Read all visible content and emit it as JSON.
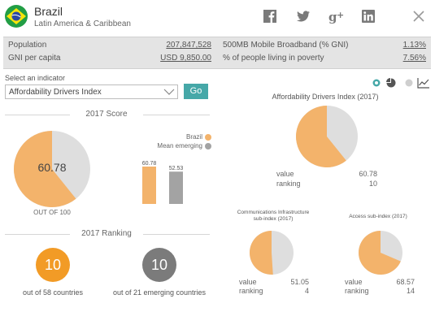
{
  "header": {
    "country": "Brazil",
    "region": "Latin America & Caribbean",
    "icons": [
      "brazil-flag-icon",
      "facebook-icon",
      "twitter-icon",
      "google-plus-icon",
      "linkedin-icon",
      "close-icon"
    ]
  },
  "stats": {
    "population_label": "Population",
    "population_value": "207,847,528",
    "gni_label": "GNI per capita",
    "gni_value": "USD 9,850.00",
    "broadband_label": "500MB Mobile Broadband (% GNI)",
    "broadband_value": "1.13%",
    "poverty_label": "% of people living in poverty",
    "poverty_value": "7.56%"
  },
  "selector": {
    "label": "Select an indicator",
    "value": "Affordability Drivers Index",
    "go_label": "Go"
  },
  "score": {
    "title": "2017 Score",
    "value": "60.78",
    "out_of": "OUT OF 100",
    "legend_brazil": "Brazil",
    "legend_mean": "Mean emerging",
    "bar_brazil_label": "60.78",
    "bar_mean_label": "52.53"
  },
  "ranking": {
    "title": "2017 Ranking",
    "rank_all": "10",
    "rank_all_text": "out of 58 countries",
    "rank_emerging": "10",
    "rank_emerging_text": "out of 21 emerging countries"
  },
  "right": {
    "view_icons": [
      "pie-view-icon",
      "line-view-icon"
    ],
    "main_title": "Affordability Drivers Index (2017)",
    "main_value_label": "value",
    "main_value": "60.78",
    "main_ranking_label": "ranking",
    "main_ranking": "10",
    "comm_title_1": "Communications Infrastructure",
    "comm_title_2": "sub-index (2017)",
    "comm_value_label": "value",
    "comm_value": "51.05",
    "comm_ranking_label": "ranking",
    "comm_ranking": "4",
    "access_title": "Access sub-index (2017)",
    "access_value_label": "value",
    "access_value": "68.57",
    "access_ranking_label": "ranking",
    "access_ranking": "14"
  },
  "colors": {
    "orange": "#f3b36b",
    "grey": "#dedede",
    "dark_grey": "#a3a3a3",
    "rank_orange": "#f29b26",
    "rank_grey": "#7b7b7b",
    "teal": "#46a8a8"
  },
  "chart_data": [
    {
      "type": "pie",
      "name": "2017 Score",
      "values": [
        60.78,
        39.22
      ],
      "total": 100
    },
    {
      "type": "bar",
      "categories": [
        "Brazil",
        "Mean emerging"
      ],
      "values": [
        60.78,
        52.53
      ]
    },
    {
      "type": "pie",
      "title": "Affordability Drivers Index (2017)",
      "values": [
        60.78,
        39.22
      ]
    },
    {
      "type": "pie",
      "title": "Communications Infrastructure sub-index (2017)",
      "values": [
        51.05,
        48.95
      ]
    },
    {
      "type": "pie",
      "title": "Access sub-index (2017)",
      "values": [
        68.57,
        31.43
      ]
    }
  ]
}
